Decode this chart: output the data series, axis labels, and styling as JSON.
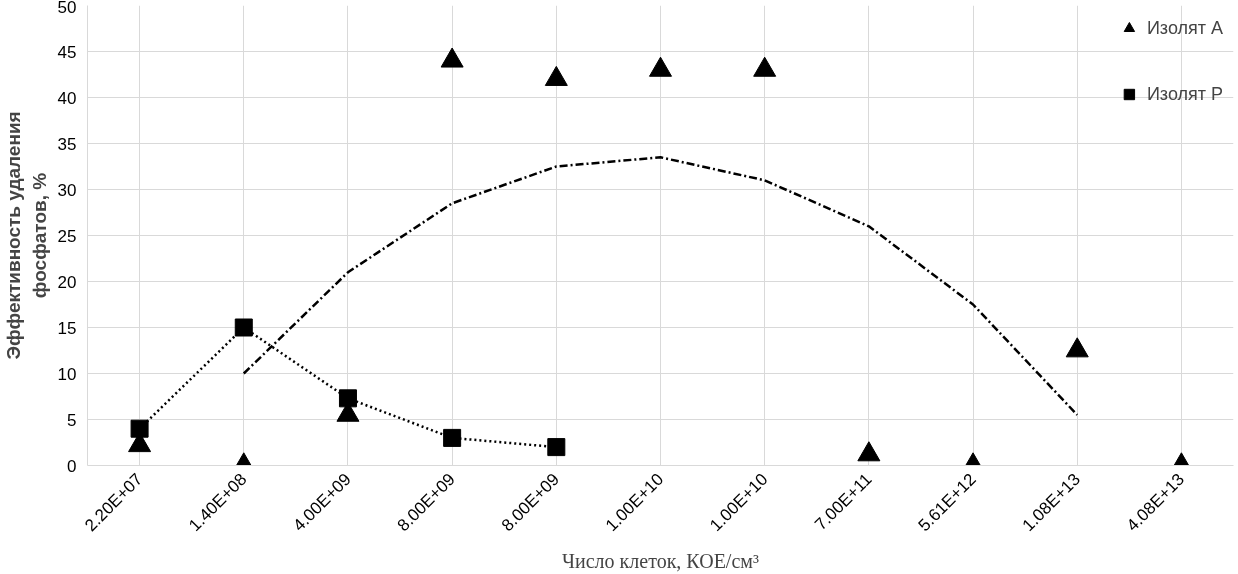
{
  "chart_data": {
    "type": "scatter",
    "xlabel": "Число клеток, КОЕ/см³",
    "ylabel": "Эффективность удаления\nфосфатов, %",
    "categories": [
      "2.20E+07",
      "1.40E+08",
      "4.00E+09",
      "8.00E+09",
      "8.00E+09",
      "1.00E+10",
      "1.00E+10",
      "7.00E+11",
      "5.61E+12",
      "1.08E+13",
      "4.08E+13"
    ],
    "ylim": [
      0,
      50
    ],
    "yticks": [
      0,
      5,
      10,
      15,
      20,
      25,
      30,
      35,
      40,
      45,
      50
    ],
    "grid": true,
    "legend": "top right",
    "series": [
      {
        "name": "Изолят А",
        "color": "#000000",
        "marker": "triangle",
        "values": [
          2.2,
          0,
          5.5,
          44,
          42,
          43,
          43,
          1.2,
          0,
          12.5,
          0
        ]
      },
      {
        "name": "Изолят Р",
        "color": "#000000",
        "marker": "square",
        "values": [
          4,
          15,
          7.3,
          3,
          2,
          null,
          null,
          null,
          null,
          null,
          null
        ]
      },
      {
        "type": "line",
        "color": "#000000",
        "line_style": "dashed",
        "values": [
          null,
          10,
          21,
          28.5,
          32.5,
          33.5,
          31,
          26,
          17.5,
          5.5,
          null
        ]
      },
      {
        "type": "line",
        "color": "#000000",
        "line_style": "dotted",
        "values": [
          4,
          15,
          7.3,
          3,
          2,
          null,
          null,
          null,
          null,
          null,
          null
        ]
      }
    ]
  }
}
